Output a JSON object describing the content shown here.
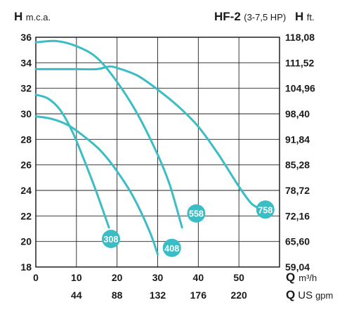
{
  "header": {
    "left_symbol": "H",
    "left_unit": "m.c.a.",
    "model": "HF-2",
    "power": "(3-7,5 HP)",
    "right_symbol": "H",
    "right_unit": "ft."
  },
  "chart_data": {
    "type": "line",
    "title": "HF-2",
    "subtitle": "(3-7,5 HP)",
    "xlabel": "Q m³/h",
    "xlabel_secondary": "Q US gpm",
    "ylabel": "H m.c.a.",
    "ylabel_secondary": "H ft.",
    "xlim": [
      0,
      60
    ],
    "ylim": [
      18,
      36
    ],
    "grid": true,
    "x_ticks": [
      "0",
      "10",
      "20",
      "30",
      "40",
      "50"
    ],
    "x_ticks_secondary": [
      {
        "at": 10,
        "label": "44"
      },
      {
        "at": 20,
        "label": "88"
      },
      {
        "at": 30,
        "label": "132"
      },
      {
        "at": 40,
        "label": "176"
      },
      {
        "at": 50,
        "label": "220"
      }
    ],
    "y_ticks": [
      "18",
      "20",
      "22",
      "24",
      "26",
      "28",
      "30",
      "32",
      "34",
      "36"
    ],
    "y_ticks_secondary": [
      "59,04",
      "65,60",
      "72,16",
      "78,72",
      "85,28",
      "91,84",
      "98,40",
      "104,96",
      "111,52",
      "118,08"
    ],
    "series_color": "#3bbdc6",
    "series": [
      {
        "name": "308",
        "label_point": [
          18.5,
          20.2
        ],
        "x": [
          0,
          3,
          6,
          9,
          12,
          15,
          18
        ],
        "y": [
          31.5,
          31.2,
          30.3,
          28.6,
          26.3,
          23.8,
          21.1
        ]
      },
      {
        "name": "408",
        "label_point": [
          33.5,
          19.5
        ],
        "x": [
          0,
          4,
          8,
          12,
          16,
          20,
          24,
          28,
          30
        ],
        "y": [
          29.8,
          29.6,
          29.1,
          28.2,
          27.1,
          25.5,
          23.5,
          20.8,
          19.0
        ]
      },
      {
        "name": "558",
        "label_point": [
          39.5,
          22.2
        ],
        "x": [
          0,
          5,
          10,
          15,
          20,
          25,
          30,
          33,
          36
        ],
        "y": [
          35.6,
          35.7,
          35.3,
          34.4,
          32.5,
          30.0,
          26.8,
          24.4,
          21.1
        ]
      },
      {
        "name": "758",
        "label_point": [
          56.5,
          22.5
        ],
        "x": [
          0,
          10,
          15,
          18,
          20,
          25,
          30,
          35,
          40,
          45,
          50,
          53,
          55
        ],
        "y": [
          33.5,
          33.5,
          33.5,
          33.7,
          33.6,
          33.0,
          31.9,
          30.6,
          29.0,
          26.8,
          24.3,
          23.0,
          22.6
        ]
      }
    ]
  }
}
